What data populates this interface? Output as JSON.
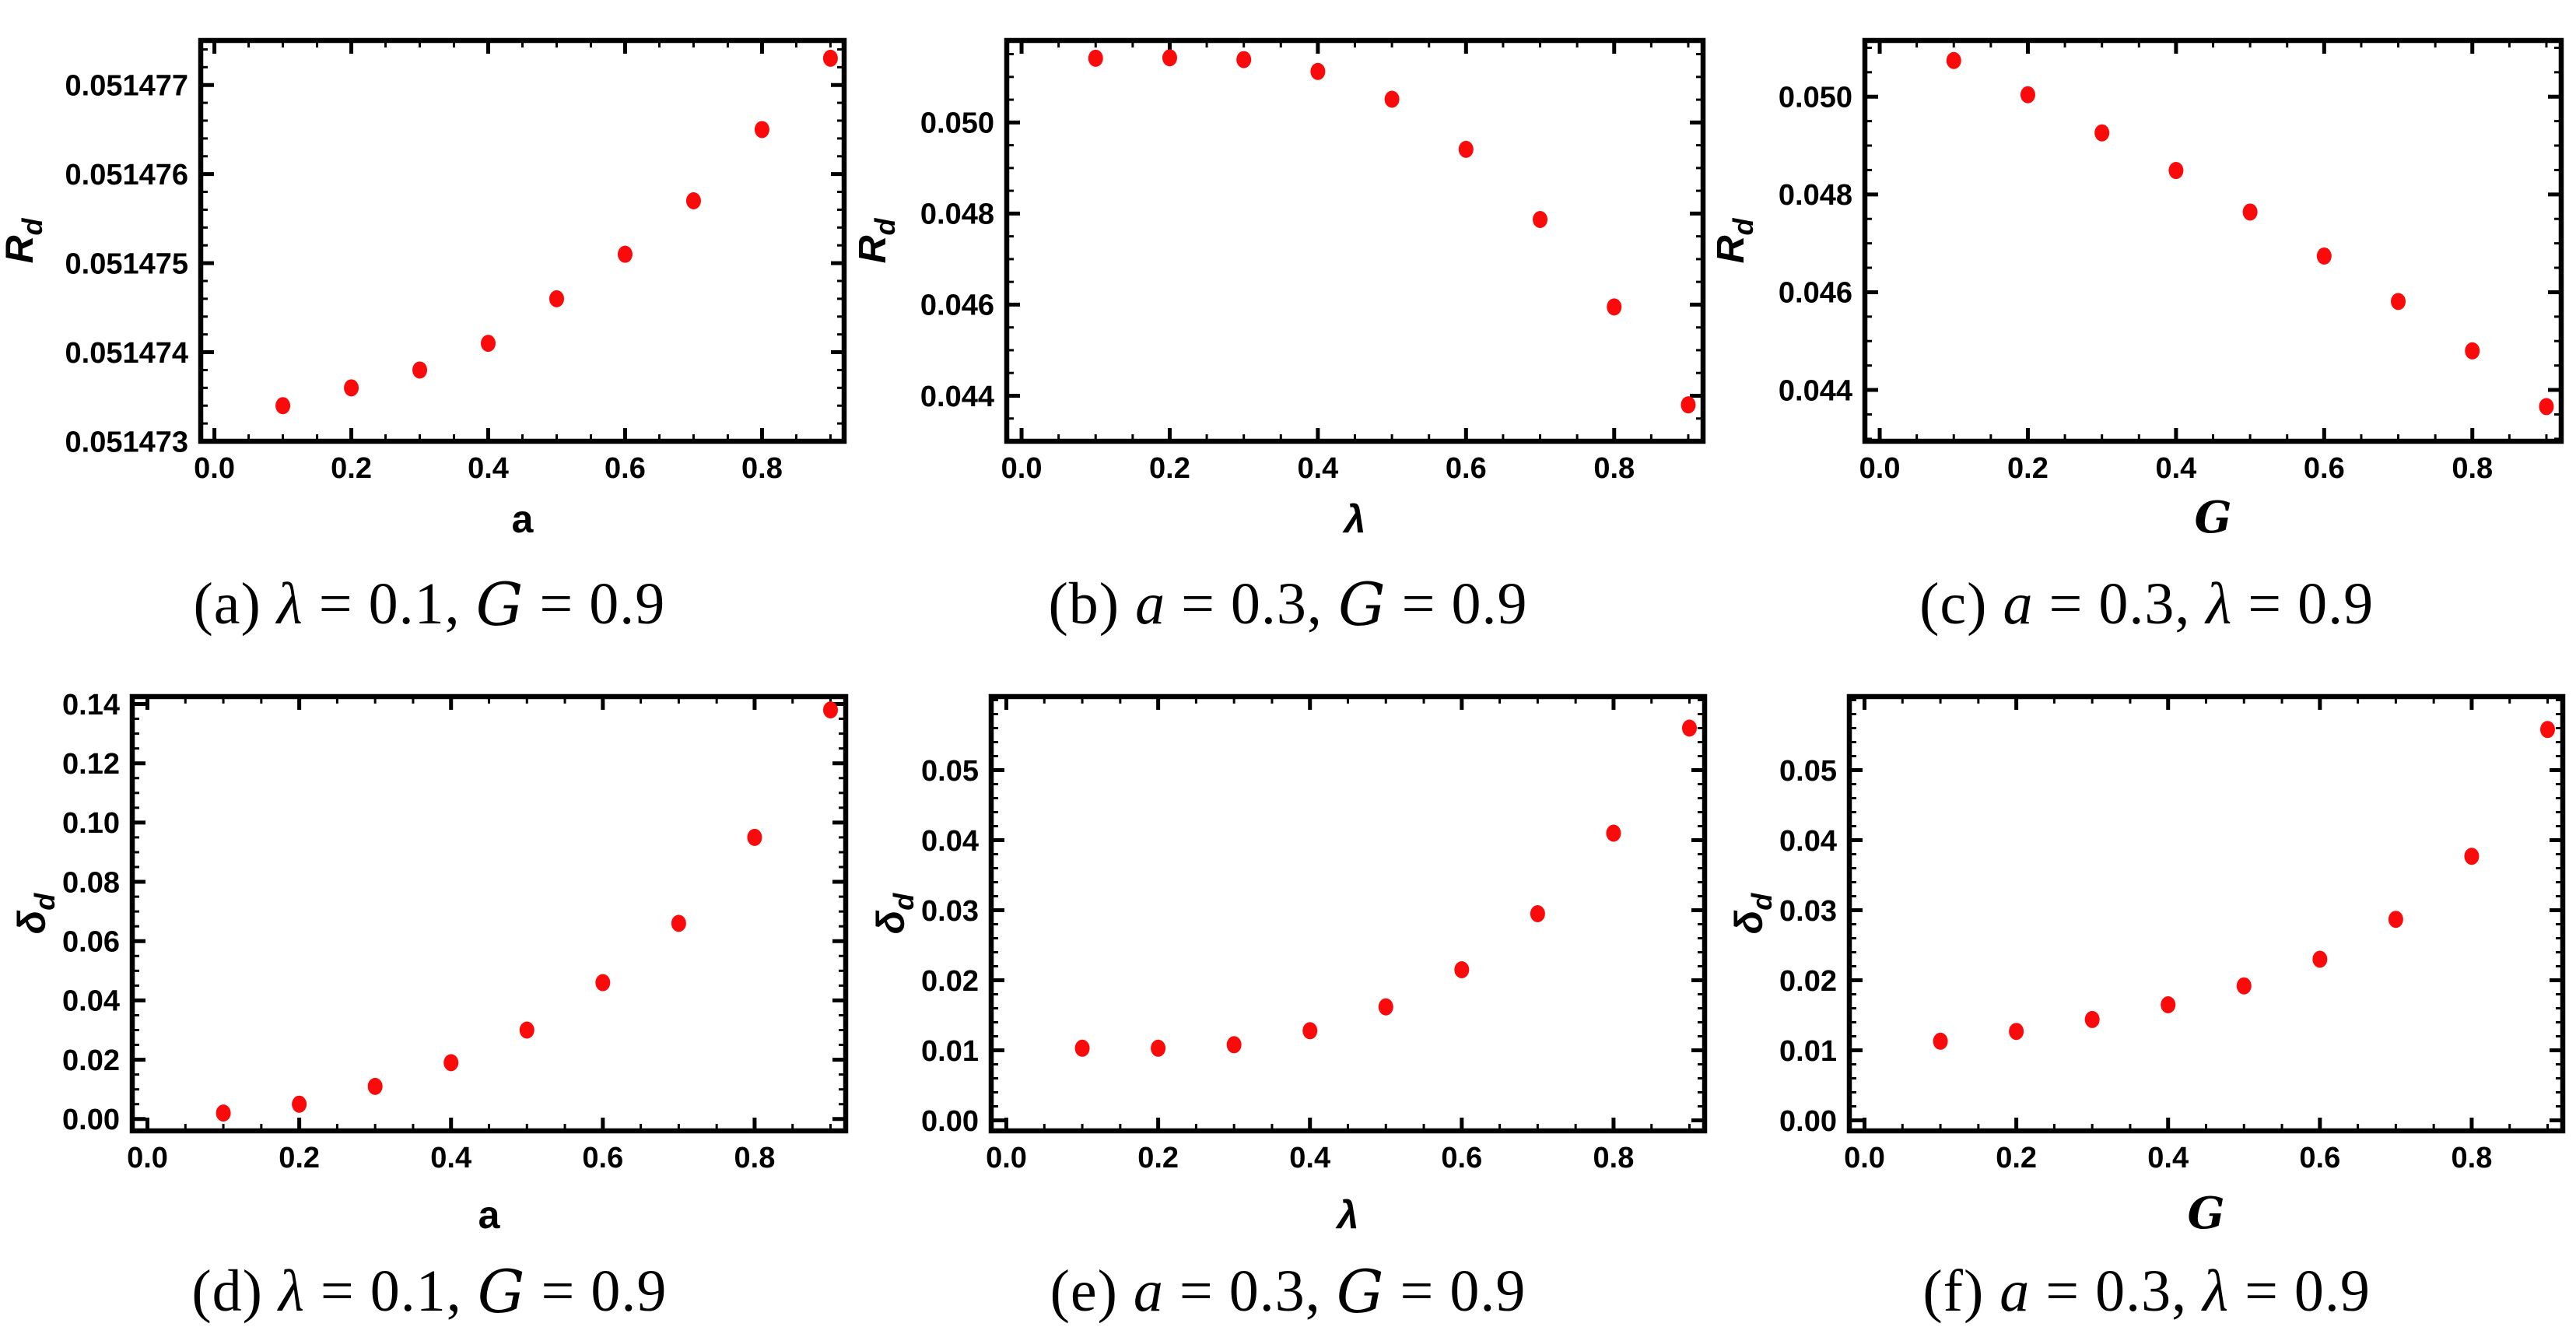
{
  "figure": {
    "colors": {
      "background": "#ffffff",
      "frame": "#000000",
      "marker": "#fa0a0a",
      "text": "#000000"
    },
    "marker_shape": "filled-circle",
    "grid": "off",
    "legend": "none"
  },
  "chart_data": [
    {
      "id": "a",
      "type": "scatter",
      "row": 1,
      "title": "",
      "xlabel": {
        "text": "a",
        "style": "bold"
      },
      "ylabel": {
        "main": "R",
        "sub": "d",
        "style": "bold-italic"
      },
      "caption_parts": [
        {
          "t": "(a) "
        },
        {
          "t": "λ",
          "s": "it"
        },
        {
          "t": " = 0.1, "
        },
        {
          "t": "G",
          "s": "sc"
        },
        {
          "t": " = 0.9"
        }
      ],
      "x": [
        0.1,
        0.2,
        0.3,
        0.4,
        0.5,
        0.6,
        0.7,
        0.8,
        0.9
      ],
      "y": [
        0.0514734,
        0.0514736,
        0.0514738,
        0.0514741,
        0.0514746,
        0.0514751,
        0.0514757,
        0.0514765,
        0.0514773
      ],
      "xlim": [
        -0.02,
        0.92
      ],
      "ylim": [
        0.051473,
        0.0514775
      ],
      "xticks": {
        "values": [
          0.0,
          0.2,
          0.4,
          0.6,
          0.8
        ],
        "labels": [
          "0.0",
          "0.2",
          "0.4",
          "0.6",
          "0.8"
        ],
        "minor_step": 0.05
      },
      "yticks": {
        "values": [
          0.051473,
          0.051474,
          0.051475,
          0.051476,
          0.051477
        ],
        "labels": [
          "0.051473",
          "0.051474",
          "0.051475",
          "0.051476",
          "0.051477"
        ],
        "minor_step": 2e-07
      }
    },
    {
      "id": "b",
      "type": "scatter",
      "row": 1,
      "title": "",
      "xlabel": {
        "text": "λ",
        "style": "bold-italic"
      },
      "ylabel": {
        "main": "R",
        "sub": "d",
        "style": "bold-italic"
      },
      "caption_parts": [
        {
          "t": "(b) "
        },
        {
          "t": "a",
          "s": "it"
        },
        {
          "t": " = 0.3, "
        },
        {
          "t": "G",
          "s": "sc"
        },
        {
          "t": " = 0.9"
        }
      ],
      "x": [
        0.1,
        0.2,
        0.3,
        0.4,
        0.5,
        0.6,
        0.7,
        0.8,
        0.9
      ],
      "y": [
        0.05141,
        0.05142,
        0.05138,
        0.05112,
        0.05051,
        0.04941,
        0.04787,
        0.04595,
        0.0438
      ],
      "xlim": [
        -0.02,
        0.92
      ],
      "ylim": [
        0.043,
        0.0518
      ],
      "xticks": {
        "values": [
          0.0,
          0.2,
          0.4,
          0.6,
          0.8
        ],
        "labels": [
          "0.0",
          "0.2",
          "0.4",
          "0.6",
          "0.8"
        ],
        "minor_step": 0.05
      },
      "yticks": {
        "values": [
          0.044,
          0.046,
          0.048,
          0.05
        ],
        "labels": [
          "0.044",
          "0.046",
          "0.048",
          "0.050"
        ],
        "minor_step": 0.0005
      }
    },
    {
      "id": "c",
      "type": "scatter",
      "row": 1,
      "title": "",
      "xlabel": {
        "text": "G",
        "style": "script"
      },
      "ylabel": {
        "main": "R",
        "sub": "d",
        "style": "bold-italic"
      },
      "caption_parts": [
        {
          "t": "(c) "
        },
        {
          "t": "a",
          "s": "it"
        },
        {
          "t": " = 0.3, "
        },
        {
          "t": "λ",
          "s": "it"
        },
        {
          "t": " = 0.9"
        }
      ],
      "x": [
        0.1,
        0.2,
        0.3,
        0.4,
        0.5,
        0.6,
        0.7,
        0.8,
        0.9
      ],
      "y": [
        0.05074,
        0.05004,
        0.04926,
        0.04849,
        0.04764,
        0.04674,
        0.04581,
        0.0448,
        0.04366
      ],
      "xlim": [
        -0.02,
        0.92
      ],
      "ylim": [
        0.04295,
        0.05115
      ],
      "xticks": {
        "values": [
          0.0,
          0.2,
          0.4,
          0.6,
          0.8
        ],
        "labels": [
          "0.0",
          "0.2",
          "0.4",
          "0.6",
          "0.8"
        ],
        "minor_step": 0.05
      },
      "yticks": {
        "values": [
          0.044,
          0.046,
          0.048,
          0.05
        ],
        "labels": [
          "0.044",
          "0.046",
          "0.048",
          "0.050"
        ],
        "minor_step": 0.0005
      }
    },
    {
      "id": "d",
      "type": "scatter",
      "row": 2,
      "title": "",
      "xlabel": {
        "text": "a",
        "style": "bold"
      },
      "ylabel": {
        "main": "δ",
        "sub": "d",
        "style": "bold-italic"
      },
      "caption_parts": [
        {
          "t": "(d) "
        },
        {
          "t": "λ",
          "s": "it"
        },
        {
          "t": " = 0.1, "
        },
        {
          "t": "G",
          "s": "sc"
        },
        {
          "t": " = 0.9"
        }
      ],
      "x": [
        0.1,
        0.2,
        0.3,
        0.4,
        0.5,
        0.6,
        0.7,
        0.8,
        0.9
      ],
      "y": [
        0.002,
        0.005,
        0.011,
        0.019,
        0.03,
        0.046,
        0.066,
        0.095,
        0.138
      ],
      "xlim": [
        -0.02,
        0.92
      ],
      "ylim": [
        -0.004,
        0.1425
      ],
      "xticks": {
        "values": [
          0.0,
          0.2,
          0.4,
          0.6,
          0.8
        ],
        "labels": [
          "0.0",
          "0.2",
          "0.4",
          "0.6",
          "0.8"
        ],
        "minor_step": 0.05
      },
      "yticks": {
        "values": [
          0.0,
          0.02,
          0.04,
          0.06,
          0.08,
          0.1,
          0.12,
          0.14
        ],
        "labels": [
          "0.00",
          "0.02",
          "0.04",
          "0.06",
          "0.08",
          "0.10",
          "0.12",
          "0.14"
        ],
        "minor_step": 0.005
      }
    },
    {
      "id": "e",
      "type": "scatter",
      "row": 2,
      "title": "",
      "xlabel": {
        "text": "λ",
        "style": "bold-italic"
      },
      "ylabel": {
        "main": "δ",
        "sub": "d",
        "style": "bold-italic"
      },
      "caption_parts": [
        {
          "t": "(e) "
        },
        {
          "t": "a",
          "s": "it"
        },
        {
          "t": " = 0.3, "
        },
        {
          "t": "G",
          "s": "sc"
        },
        {
          "t": " = 0.9"
        }
      ],
      "x": [
        0.1,
        0.2,
        0.3,
        0.4,
        0.5,
        0.6,
        0.7,
        0.8,
        0.9
      ],
      "y": [
        0.0103,
        0.0103,
        0.0108,
        0.0128,
        0.0162,
        0.0215,
        0.0295,
        0.041,
        0.056
      ],
      "xlim": [
        -0.02,
        0.92
      ],
      "ylim": [
        -0.0015,
        0.0605
      ],
      "xticks": {
        "values": [
          0.0,
          0.2,
          0.4,
          0.6,
          0.8
        ],
        "labels": [
          "0.0",
          "0.2",
          "0.4",
          "0.6",
          "0.8"
        ],
        "minor_step": 0.05
      },
      "yticks": {
        "values": [
          0.0,
          0.01,
          0.02,
          0.03,
          0.04,
          0.05
        ],
        "labels": [
          "0.00",
          "0.01",
          "0.02",
          "0.03",
          "0.04",
          "0.05"
        ],
        "minor_step": 0.002
      }
    },
    {
      "id": "f",
      "type": "scatter",
      "row": 2,
      "title": "",
      "xlabel": {
        "text": "G",
        "style": "script"
      },
      "ylabel": {
        "main": "δ",
        "sub": "d",
        "style": "bold-italic"
      },
      "caption_parts": [
        {
          "t": "(f) "
        },
        {
          "t": "a",
          "s": "it"
        },
        {
          "t": " = 0.3, "
        },
        {
          "t": "λ",
          "s": "it"
        },
        {
          "t": " = 0.9"
        }
      ],
      "x": [
        0.1,
        0.2,
        0.3,
        0.4,
        0.5,
        0.6,
        0.7,
        0.8,
        0.9
      ],
      "y": [
        0.0113,
        0.0127,
        0.0144,
        0.0165,
        0.0192,
        0.023,
        0.0287,
        0.0377,
        0.0558
      ],
      "xlim": [
        -0.02,
        0.92
      ],
      "ylim": [
        -0.0015,
        0.0605
      ],
      "xticks": {
        "values": [
          0.0,
          0.2,
          0.4,
          0.6,
          0.8
        ],
        "labels": [
          "0.0",
          "0.2",
          "0.4",
          "0.6",
          "0.8"
        ],
        "minor_step": 0.05
      },
      "yticks": {
        "values": [
          0.0,
          0.01,
          0.02,
          0.03,
          0.04,
          0.05
        ],
        "labels": [
          "0.00",
          "0.01",
          "0.02",
          "0.03",
          "0.04",
          "0.05"
        ],
        "minor_step": 0.002
      }
    }
  ]
}
